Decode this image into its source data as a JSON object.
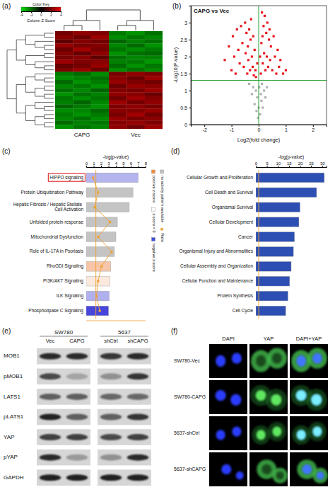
{
  "panel_labels": [
    "(a)",
    "(b)",
    "(c)",
    "(d)",
    "(e)",
    "(f)"
  ],
  "chart_data": [
    {
      "type": "heatmap",
      "legend_title": "Color Key",
      "colorbar_label": "Column Z-Score",
      "colorbar_range": [
        -4,
        4
      ],
      "colorbar_ticks": [
        -4,
        -2,
        0,
        2,
        4
      ],
      "categories": [
        null,
        "CAPG",
        null,
        null,
        "Vec",
        null
      ],
      "cells": [
        [
          1.9,
          2.4,
          2.1,
          -2.2,
          -2.6,
          -2.0
        ],
        [
          2.3,
          1.8,
          2.6,
          -2.5,
          -2.1,
          -2.4
        ],
        [
          1.6,
          2.2,
          1.9,
          -1.8,
          -2.3,
          -2.0
        ],
        [
          2.5,
          2.0,
          2.2,
          -2.4,
          -1.9,
          -2.6
        ],
        [
          1.8,
          2.7,
          2.0,
          -2.1,
          -2.5,
          -2.2
        ],
        [
          2.2,
          1.7,
          2.4,
          -2.6,
          -2.0,
          -1.9
        ],
        [
          2.0,
          2.3,
          1.6,
          -2.0,
          -2.4,
          -2.3
        ],
        [
          2.6,
          2.1,
          2.3,
          -2.3,
          -2.2,
          -2.7
        ],
        [
          1.7,
          1.9,
          2.5,
          -1.9,
          -2.6,
          -2.1
        ],
        [
          2.1,
          2.5,
          1.8,
          -2.5,
          -2.0,
          -2.4
        ],
        [
          -2.2,
          -1.9,
          -2.5,
          2.0,
          2.4,
          2.1
        ],
        [
          -2.5,
          -2.3,
          -2.0,
          2.3,
          1.8,
          2.6
        ],
        [
          -1.9,
          -2.6,
          -2.2,
          2.5,
          2.1,
          1.9
        ],
        [
          -2.4,
          -2.1,
          -2.6,
          1.8,
          2.5,
          2.3
        ],
        [
          -2.0,
          -2.4,
          -1.8,
          2.2,
          2.0,
          2.6
        ],
        [
          -2.6,
          -2.0,
          -2.3,
          2.4,
          2.3,
          1.8
        ],
        [
          -2.1,
          -2.5,
          -2.1,
          1.9,
          2.6,
          2.2
        ],
        [
          -2.3,
          -1.8,
          -2.4,
          2.6,
          1.9,
          2.4
        ],
        [
          -1.8,
          -2.2,
          -2.6,
          2.1,
          2.4,
          2.0
        ],
        [
          -2.5,
          -2.4,
          -1.9,
          2.3,
          2.2,
          2.5
        ],
        [
          -2.2,
          -2.6,
          -2.2,
          2.0,
          2.7,
          1.9
        ],
        [
          -2.4,
          -2.0,
          -2.5,
          2.5,
          2.0,
          2.3
        ],
        [
          -1.9,
          -2.3,
          -2.1,
          2.2,
          2.5,
          2.1
        ],
        [
          -2.6,
          -2.1,
          -2.4,
          2.4,
          1.9,
          2.6
        ]
      ]
    },
    {
      "type": "scatter",
      "title": "CAPG vs Vec",
      "x_label": "Log2(fold change)",
      "y_label": "-Log10(P-value)",
      "xlim": [
        -2.5,
        2.5
      ],
      "xticks": [
        -2,
        -1,
        0,
        1,
        2
      ],
      "ylim": [
        0,
        3.5
      ],
      "yticks": [
        0,
        0.5,
        1,
        1.5,
        2,
        2.5,
        3
      ],
      "hlines": [
        1.3
      ],
      "vlines": [
        0
      ],
      "series": [
        {
          "color": "#e8141c",
          "marker": "square",
          "x": [
            -1.25,
            -1.1,
            -1.0,
            -0.95,
            -0.9,
            -0.85,
            -0.8,
            -0.75,
            -0.7,
            -0.65,
            -0.6,
            -0.55,
            -0.5,
            -0.48,
            -0.45,
            -0.42,
            -0.4,
            -0.38,
            -0.35,
            -0.32,
            -0.3,
            -0.28,
            -0.25,
            -0.22,
            -0.2,
            -0.18,
            -0.15,
            -0.12,
            -0.1,
            -0.05,
            0.05,
            0.08,
            0.1,
            0.12,
            0.14,
            0.15,
            0.18,
            0.2,
            0.22,
            0.25,
            0.28,
            0.3,
            0.32,
            0.35,
            0.38,
            0.4,
            0.42,
            0.45,
            0.5,
            0.55,
            0.6,
            0.65,
            0.7,
            0.75,
            0.8,
            0.9,
            1.0
          ],
          "values": [
            1.9,
            2.3,
            1.6,
            2.6,
            2.0,
            1.5,
            2.8,
            2.2,
            1.8,
            2.9,
            2.4,
            1.7,
            3.0,
            2.1,
            2.7,
            1.5,
            2.3,
            1.9,
            2.8,
            1.6,
            2.5,
            3.1,
            2.0,
            1.7,
            2.6,
            1.45,
            2.2,
            1.6,
            1.4,
            1.8,
            2.0,
            1.5,
            2.4,
            3.3,
            2.6,
            1.8,
            2.9,
            2.1,
            3.2,
            1.6,
            2.7,
            2.0,
            3.0,
            1.7,
            2.5,
            2.8,
            1.9,
            2.3,
            1.6,
            2.6,
            2.0,
            1.5,
            2.2,
            1.7,
            1.9,
            1.5,
            1.6
          ]
        },
        {
          "color": "#b0b0b0",
          "marker": "square",
          "x": [
            -0.35,
            -0.25,
            -0.2,
            -0.15,
            -0.1,
            -0.08,
            -0.05,
            -0.02,
            0.0,
            0.02,
            0.05,
            0.08,
            0.1,
            0.12,
            0.15,
            0.2,
            0.25,
            0.3
          ],
          "values": [
            1.2,
            0.9,
            1.1,
            0.6,
            1.0,
            0.4,
            0.8,
            0.2,
            0.5,
            1.1,
            0.3,
            0.9,
            0.7,
            1.2,
            0.5,
            1.0,
            0.8,
            1.1
          ]
        }
      ]
    },
    {
      "type": "bar",
      "orientation": "horizontal",
      "x_label": "-log(p-value)",
      "categories": [
        "HIPPO signaling",
        "Protein Ubiquitination Pathway",
        "Hepatic Fibrosis / Hepatic Stellate Cell Activation",
        "Unfolded protein response",
        "Mitochondrial Dysfunction",
        "Role of IL-17A in Psoriasis",
        "RhoGDI Signaling",
        "PI3K/AKT Signaling",
        "ILK Signaling",
        "Phospholipase C Signaling"
      ],
      "series": [
        {
          "type": "bar",
          "values": [
            7.0,
            6.3,
            5.8,
            4.2,
            4.0,
            3.8,
            3.3,
            3.2,
            3.1,
            3.0
          ],
          "colors": [
            "#b4b4ee",
            "#c4c4c4",
            "#c4c4c4",
            "#c4c4c4",
            "#c4c4c4",
            "#c4c4c4",
            "#f7c6aa",
            "#fbe9de",
            "#b0b0ee",
            "#4646dc"
          ]
        },
        {
          "name": "Ratio",
          "type": "line",
          "marker": "square",
          "color": "#f0a030",
          "axis": "y2",
          "values": [
            0.04,
            0.07,
            0.05,
            0.14,
            0.07,
            0.15,
            0.09,
            0.07,
            0.06,
            0.08
          ]
        }
      ],
      "xlim": [
        0,
        8
      ],
      "xticks": [
        0,
        1,
        2,
        3,
        4,
        5,
        6,
        7,
        8
      ],
      "y2lim": [
        0,
        0.35
      ],
      "threshold": 1.3,
      "legend": "right",
      "legend_entries": [
        {
          "label": "positive z-score",
          "color": "#f28e3c"
        },
        {
          "label": "z-score = 0",
          "color": "#ffffff"
        },
        {
          "label": "negative z-score",
          "color": "#3b4fe0"
        },
        {
          "label": "no activity pattern available",
          "color": "#c4c4c4"
        }
      ]
    },
    {
      "type": "bar",
      "orientation": "horizontal",
      "x_label": "-log(p-value)",
      "categories": [
        "Cellular Growth and Proliferation",
        "Cell Death and Survival",
        "Organismal Survival",
        "Cellular Development",
        "Cancer",
        "Organismal Injury and Abnormalities",
        "Cellular Assembly and Organization",
        "Cellular Function and Maintenance",
        "Protein Synthesis",
        "Cell Cycle"
      ],
      "values": [
        31,
        27.5,
        20,
        19.5,
        17.5,
        17,
        16,
        15.3,
        14.5,
        13.5
      ],
      "color": "#2d4fb4",
      "xlim": [
        0,
        32
      ],
      "xticks": [
        0,
        5,
        10,
        15,
        20,
        25,
        30
      ],
      "threshold": 1.3
    }
  ],
  "western_blot": {
    "groups": [
      {
        "label": "SW780",
        "lanes": [
          "Vec",
          "CAPG"
        ]
      },
      {
        "label": "5637",
        "lanes": [
          "shCtrl",
          "shCAPG"
        ]
      }
    ],
    "rows": [
      {
        "label": "MOB1",
        "intensity": [
          0.85,
          0.85,
          0.8,
          0.85
        ]
      },
      {
        "label": "pMOB1",
        "intensity": [
          0.7,
          0.25,
          0.35,
          0.8
        ]
      },
      {
        "label": "LATS1",
        "intensity": [
          0.6,
          0.6,
          0.55,
          0.55
        ]
      },
      {
        "label": "pLATS1",
        "intensity": [
          0.9,
          0.6,
          0.6,
          0.8
        ]
      },
      {
        "label": "YAP",
        "intensity": [
          0.75,
          0.75,
          0.7,
          0.75
        ]
      },
      {
        "label": "pYAP",
        "intensity": [
          0.85,
          0.3,
          0.35,
          0.85
        ]
      },
      {
        "label": "GAPDH",
        "intensity": [
          0.9,
          0.9,
          0.9,
          0.9
        ]
      }
    ]
  },
  "immunofluorescence": {
    "columns": [
      "DAPI",
      "YAP",
      "DAPI+YAP"
    ],
    "rows": [
      "SW780-Vec",
      "SW780-CAPG",
      "5637-shCtrl",
      "5637-shCAPG"
    ]
  }
}
